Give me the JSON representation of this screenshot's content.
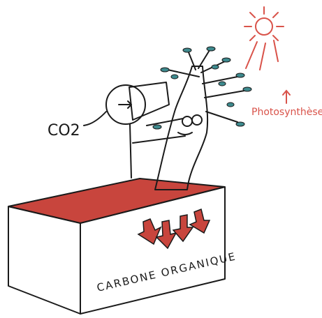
{
  "labels": {
    "co2": "CO2",
    "photosynthesis": "Photosynthèse",
    "box": "CARBONE ORGANIQUE"
  }
}
